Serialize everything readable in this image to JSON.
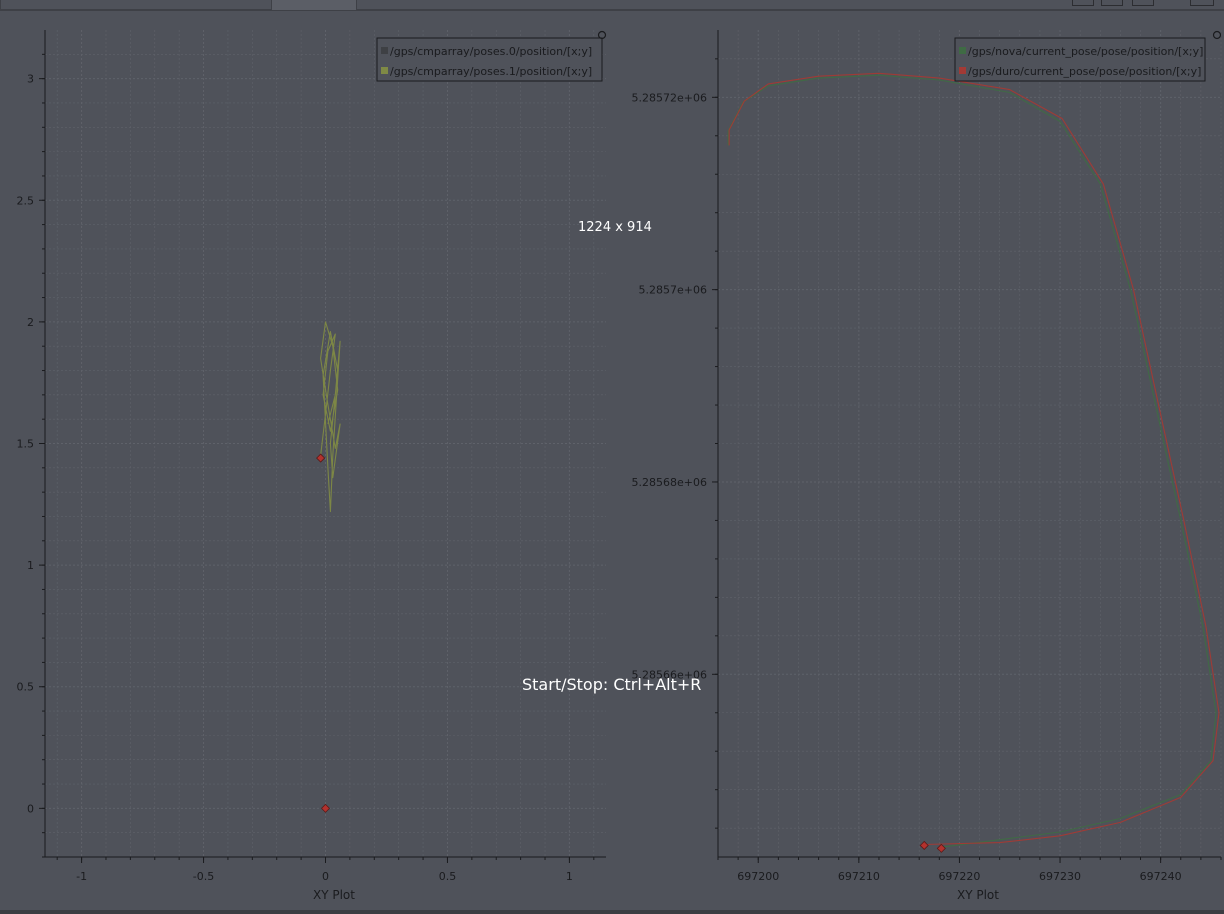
{
  "overlay": {
    "size_label": "1224 x 914",
    "record_hint": "Start/Stop: Ctrl+Alt+R"
  },
  "colors": {
    "background": "#4f525a",
    "axis": "#1a1b1e",
    "grid": "#5f626a",
    "series_olive": "#7f8a45",
    "series_green": "#3f6b44",
    "series_red": "#a33a35",
    "marker_red": "#b3322e"
  },
  "chart_data": [
    {
      "type": "line",
      "id": "left",
      "xlabel": "XY Plot",
      "ylabel": "",
      "xlim": [
        -1.15,
        1.15
      ],
      "ylim": [
        -0.2,
        3.2
      ],
      "xticks": [
        {
          "value": -1,
          "label": "-1"
        },
        {
          "value": -0.5,
          "label": "-0.5"
        },
        {
          "value": 0,
          "label": "0"
        },
        {
          "value": 0.5,
          "label": "0.5"
        },
        {
          "value": 1,
          "label": "1"
        }
      ],
      "yticks": [
        {
          "value": 0,
          "label": "0"
        },
        {
          "value": 0.5,
          "label": "0.5"
        },
        {
          "value": 1,
          "label": "1"
        },
        {
          "value": 1.5,
          "label": "1.5"
        },
        {
          "value": 2,
          "label": "2"
        },
        {
          "value": 2.5,
          "label": "2.5"
        },
        {
          "value": 3,
          "label": "3"
        }
      ],
      "series": [
        {
          "name": "/gps/cmparray/poses.0/position/[x;y]",
          "color": "#3e4044",
          "points": []
        },
        {
          "name": "/gps/cmparray/poses.1/position/[x;y]",
          "color": "#7f8a45",
          "points": [
            [
              -0.02,
              1.45
            ],
            [
              0.0,
              1.62
            ],
            [
              0.02,
              1.8
            ],
            [
              0.04,
              1.95
            ],
            [
              0.01,
              1.88
            ],
            [
              -0.01,
              1.7
            ],
            [
              0.02,
              1.55
            ],
            [
              0.05,
              1.72
            ],
            [
              0.03,
              1.9
            ],
            [
              0.0,
              2.0
            ],
            [
              -0.02,
              1.85
            ],
            [
              0.01,
              1.66
            ],
            [
              0.04,
              1.48
            ],
            [
              0.06,
              1.58
            ],
            [
              0.03,
              1.36
            ],
            [
              0.02,
              1.5
            ],
            [
              0.05,
              1.8
            ],
            [
              0.02,
              1.96
            ],
            [
              -0.01,
              1.78
            ],
            [
              0.01,
              1.4
            ],
            [
              0.02,
              1.22
            ],
            [
              0.03,
              1.45
            ],
            [
              0.06,
              1.92
            ],
            [
              0.04,
              1.7
            ],
            [
              0.01,
              1.58
            ]
          ]
        }
      ],
      "markers": [
        {
          "x": -0.02,
          "y": 1.44,
          "color": "#b3322e"
        },
        {
          "x": 0.0,
          "y": 0.0,
          "color": "#b3322e"
        }
      ]
    },
    {
      "type": "line",
      "id": "right",
      "xlabel": "XY Plot",
      "ylabel": "",
      "xlim": [
        697196,
        697246
      ],
      "ylim": [
        5285641,
        5285727
      ],
      "xticks": [
        {
          "value": 697200,
          "label": "697200"
        },
        {
          "value": 697210,
          "label": "697210"
        },
        {
          "value": 697220,
          "label": "697220"
        },
        {
          "value": 697230,
          "label": "697230"
        },
        {
          "value": 697240,
          "label": "697240"
        }
      ],
      "yticks": [
        {
          "value": 5285660,
          "label": "5.28566e+06"
        },
        {
          "value": 5285680,
          "label": "5.28568e+06"
        },
        {
          "value": 5285700,
          "label": "5.2857e+06"
        },
        {
          "value": 5285720,
          "label": "5.28572e+06"
        }
      ],
      "series": [
        {
          "name": "/gps/nova/current_pose/pose/position/[x;y]",
          "color": "#3f6b44",
          "points": [
            [
              697218,
              5285642
            ],
            [
              697224,
              5285642.8
            ],
            [
              697230,
              5285643.6
            ],
            [
              697236,
              5285645
            ],
            [
              697242,
              5285647.5
            ],
            [
              697245,
              5285651
            ],
            [
              697245.5,
              5285656
            ],
            [
              697244.2,
              5285665
            ],
            [
              697242,
              5285676
            ],
            [
              697239.5,
              5285688
            ],
            [
              697237,
              5285700
            ],
            [
              697234,
              5285711
            ],
            [
              697230,
              5285717.5
            ],
            [
              697225,
              5285720.5
            ],
            [
              697218,
              5285721.8
            ],
            [
              697212,
              5285722.3
            ],
            [
              697206,
              5285722
            ],
            [
              697201,
              5285721.2
            ],
            [
              697198.5,
              5285719.5
            ],
            [
              697197,
              5285716.5
            ],
            [
              697197,
              5285715
            ]
          ]
        },
        {
          "name": "/gps/duro/current_pose/pose/position/[x;y]",
          "color": "#a33a35",
          "points": [
            [
              697216.5,
              5285642.3
            ],
            [
              697224,
              5285642.5
            ],
            [
              697230,
              5285643.2
            ],
            [
              697236,
              5285644.6
            ],
            [
              697242,
              5285647.2
            ],
            [
              697245.2,
              5285651
            ],
            [
              697245.8,
              5285656
            ],
            [
              697244.5,
              5285665
            ],
            [
              697242.3,
              5285676
            ],
            [
              697239.8,
              5285688
            ],
            [
              697237.3,
              5285700
            ],
            [
              697234.3,
              5285711
            ],
            [
              697230.2,
              5285717.8
            ],
            [
              697225,
              5285720.8
            ],
            [
              697218,
              5285722
            ],
            [
              697212,
              5285722.5
            ],
            [
              697206,
              5285722.2
            ],
            [
              697201,
              5285721.4
            ],
            [
              697198.6,
              5285719.6
            ],
            [
              697197.1,
              5285716.6
            ],
            [
              697197.1,
              5285715
            ]
          ]
        }
      ],
      "markers": [
        {
          "x": 697216.5,
          "y": 5285642.2,
          "color": "#b3322e"
        },
        {
          "x": 697218.2,
          "y": 5285641.9,
          "color": "#b3322e"
        }
      ]
    }
  ]
}
